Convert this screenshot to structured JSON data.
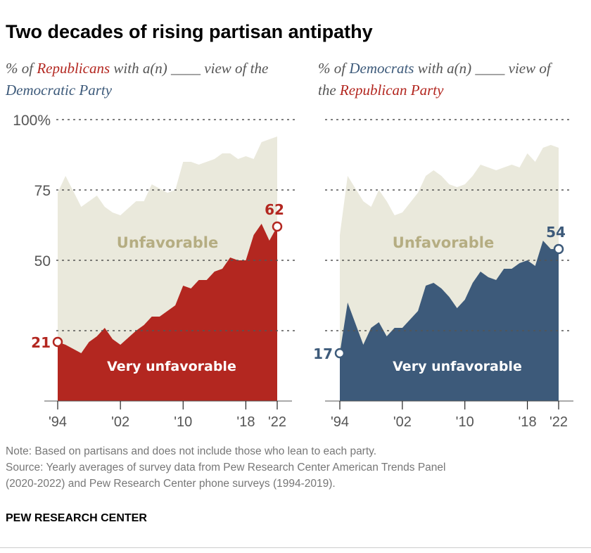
{
  "title": "Two decades of rising partisan antipathy",
  "colors": {
    "republican": "#b32720",
    "democrat": "#3d5a7a",
    "unfavorable_fill": "#eae9dc",
    "unfavorable_label": "#b5ad82"
  },
  "notes": {
    "note": "Note: Based on partisans and does not include those who lean to each party.",
    "source_1": "Source: Yearly averages of survey data from Pew Research Center American Trends Panel",
    "source_2": "(2020-2022) and Pew Research Center phone surveys (1994-2019)."
  },
  "brand": "PEW RESEARCH CENTER",
  "chart_data": [
    {
      "type": "area",
      "subtitle": {
        "pre": "% of ",
        "group": "Republicans",
        "mid": " with a(n) ____ view of the ",
        "party": "Democratic Party"
      },
      "ylim": [
        0,
        100
      ],
      "yticks": [
        25,
        50,
        75,
        100
      ],
      "ytick_labels": [
        "",
        "50",
        "75",
        "100%"
      ],
      "xticks": [
        1994,
        2002,
        2010,
        2018,
        2022
      ],
      "xtick_labels": [
        "'94",
        "'02",
        "'10",
        "'18",
        "'22"
      ],
      "grid": true,
      "series": [
        {
          "name": "Unfavorable",
          "x": [
            1994,
            1995,
            1997,
            1999,
            2000,
            2001,
            2002,
            2004,
            2005,
            2006,
            2008,
            2009,
            2010,
            2011,
            2012,
            2014,
            2015,
            2016,
            2017,
            2018,
            2019,
            2020,
            2022
          ],
          "y": [
            74,
            80,
            69,
            73,
            69,
            67,
            66,
            71,
            71,
            77,
            74,
            75,
            85,
            85,
            84,
            86,
            88,
            88,
            86,
            87,
            86,
            92,
            94
          ]
        },
        {
          "name": "Very unfavorable",
          "x": [
            1994,
            1995,
            1997,
            1998,
            1999,
            2000,
            2001,
            2002,
            2004,
            2005,
            2006,
            2007,
            2009,
            2010,
            2011,
            2012,
            2013,
            2014,
            2015,
            2016,
            2017,
            2018,
            2019,
            2020,
            2021,
            2022
          ],
          "y": [
            21,
            20,
            17,
            21,
            23,
            26,
            22,
            20,
            25,
            27,
            30,
            30,
            34,
            41,
            40,
            43,
            43,
            46,
            47,
            51,
            50,
            50,
            59,
            63,
            57,
            62
          ]
        }
      ],
      "annotations": {
        "start": "21",
        "end": "62"
      }
    },
    {
      "type": "area",
      "subtitle": {
        "pre": "% of ",
        "group": "Democrats",
        "mid": " with a(n) ____ view of the ",
        "party": "Republican Party"
      },
      "ylim": [
        0,
        100
      ],
      "yticks": [
        25,
        50,
        75,
        100
      ],
      "xticks": [
        1994,
        2002,
        2010,
        2018,
        2022
      ],
      "xtick_labels": [
        "'94",
        "'02",
        "'10",
        "'18",
        "'22"
      ],
      "grid": true,
      "series": [
        {
          "name": "Unfavorable",
          "x": [
            1994,
            1995,
            1997,
            1998,
            1999,
            2000,
            2001,
            2002,
            2004,
            2005,
            2006,
            2007,
            2008,
            2009,
            2010,
            2011,
            2012,
            2014,
            2016,
            2017,
            2018,
            2019,
            2020,
            2021,
            2022
          ],
          "y": [
            59,
            80,
            71,
            69,
            75,
            71,
            66,
            67,
            74,
            80,
            82,
            80,
            77,
            76,
            77,
            80,
            84,
            82,
            84,
            83,
            88,
            85,
            90,
            91,
            90
          ]
        },
        {
          "name": "Very unfavorable",
          "x": [
            1994,
            1995,
            1997,
            1998,
            1999,
            2000,
            2001,
            2002,
            2004,
            2005,
            2006,
            2007,
            2008,
            2009,
            2010,
            2011,
            2012,
            2013,
            2014,
            2015,
            2016,
            2017,
            2018,
            2019,
            2020,
            2021,
            2022
          ],
          "y": [
            17,
            35,
            20,
            26,
            28,
            23,
            26,
            26,
            32,
            41,
            42,
            40,
            37,
            33,
            36,
            42,
            46,
            44,
            43,
            47,
            47,
            49,
            50,
            48,
            57,
            54,
            54
          ]
        }
      ],
      "annotations": {
        "start": "17",
        "end": "54"
      }
    }
  ]
}
